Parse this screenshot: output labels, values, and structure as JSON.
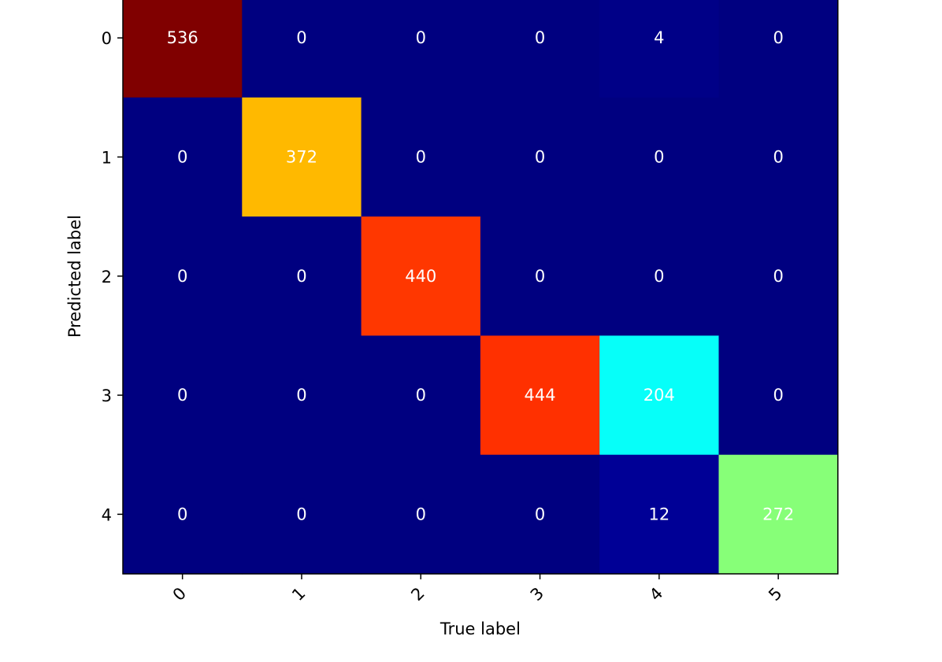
{
  "chart_data": {
    "type": "heatmap",
    "title": "",
    "xlabel": "True label",
    "ylabel": "Predicted label",
    "x_categories": [
      "0",
      "1",
      "2",
      "3",
      "4",
      "5"
    ],
    "y_categories": [
      "0",
      "1",
      "2",
      "3",
      "4"
    ],
    "values": [
      [
        536,
        0,
        0,
        0,
        4,
        0
      ],
      [
        0,
        372,
        0,
        0,
        0,
        0
      ],
      [
        0,
        0,
        440,
        0,
        0,
        0
      ],
      [
        0,
        0,
        0,
        444,
        204,
        0
      ],
      [
        0,
        0,
        0,
        0,
        12,
        272
      ]
    ],
    "colormap": "jet",
    "value_range": [
      0,
      536
    ],
    "grid": false,
    "x_tick_rotation": "45deg"
  }
}
